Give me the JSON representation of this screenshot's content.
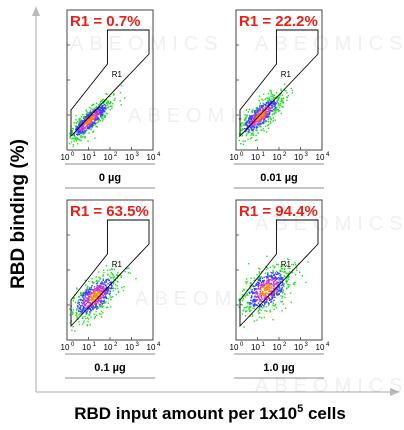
{
  "chart_data": {
    "type": "scatter",
    "ylabel": "RBD binding (%)",
    "xlabel": "RBD input amount per 1x10",
    "xlabel_superscript": "5",
    "xlabel_suffix": " cells",
    "watermark": "ABEOMICS",
    "gate_name": "R1",
    "x_ticks": [
      "10",
      "10",
      "10",
      "10",
      "10"
    ],
    "x_tick_exponents": [
      "0",
      "1",
      "2",
      "3",
      "4"
    ],
    "xscale": "log",
    "xlim": [
      1,
      10000
    ],
    "ylim": [
      1,
      10000
    ],
    "colors": {
      "region_label": "#e8201a",
      "gate": "#000000",
      "dots_sparse": "#22dd22",
      "dots_dense_1": "#3344ff",
      "dots_dense_2": "#cc33cc",
      "dots_dense_3": "#ff8800"
    },
    "panels": [
      {
        "region_label": "R1 = 0.7%",
        "percent": 0.7,
        "dose": "0 µg"
      },
      {
        "region_label": "R1 = 22.2%",
        "percent": 22.2,
        "dose": "0.01 µg"
      },
      {
        "region_label": "R1 = 63.5%",
        "percent": 63.5,
        "dose": "0.1 µg"
      },
      {
        "region_label": "R1 = 94.4%",
        "percent": 94.4,
        "dose": "1.0 µg"
      }
    ]
  }
}
